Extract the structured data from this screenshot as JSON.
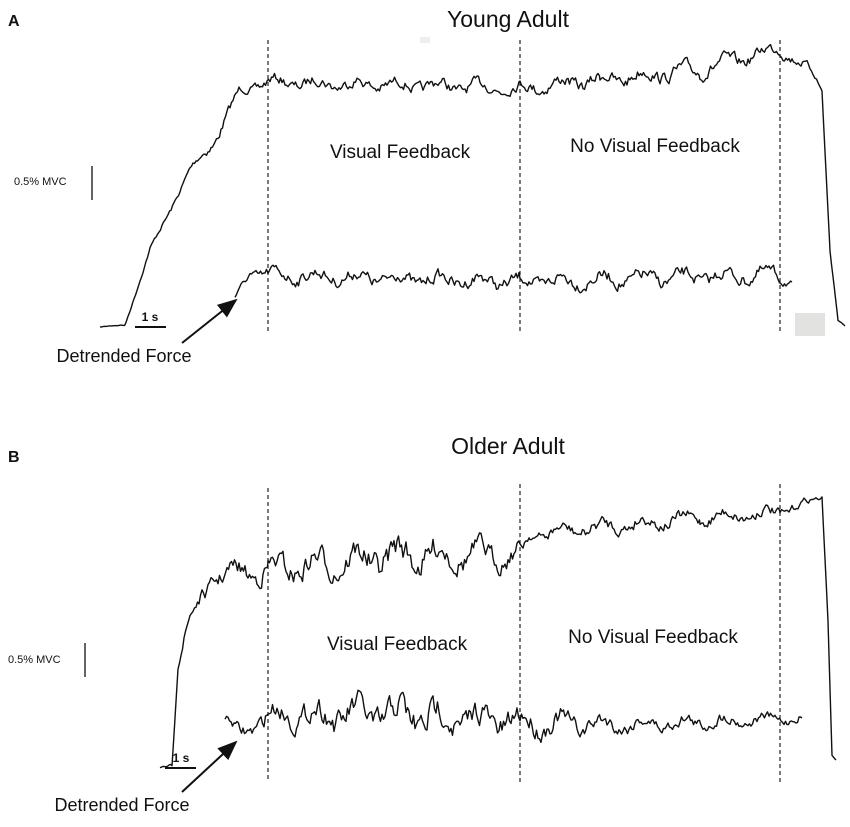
{
  "panels": [
    {
      "label": "A",
      "title": "Young Adult",
      "force_scale": "0.5% MVC",
      "time_scale": "1 s",
      "regions": [
        "Visual Feedback",
        "No Visual Feedback"
      ],
      "annotation": "Detrended Force"
    },
    {
      "label": "B",
      "title": "Older Adult",
      "force_scale": "0.5% MVC",
      "time_scale": "1 s",
      "regions": [
        "Visual Feedback",
        "No Visual Feedback"
      ],
      "annotation": "Detrended Force"
    }
  ]
}
